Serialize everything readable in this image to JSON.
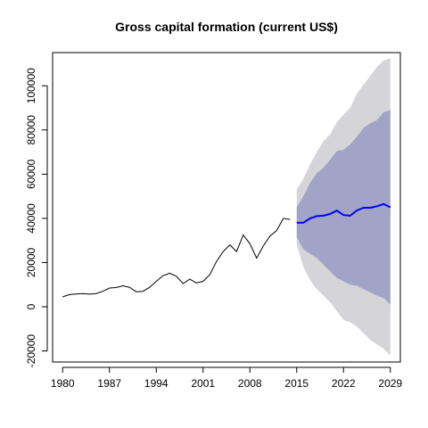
{
  "chart_data": {
    "type": "line",
    "title": "Gross capital formation (current US$)",
    "xlabel": "",
    "ylabel": "",
    "xlim": [
      1978.5,
      2030.5
    ],
    "ylim": [
      -25000,
      115000
    ],
    "x_ticks": [
      1980,
      1987,
      1994,
      2001,
      2008,
      2015,
      2022,
      2029
    ],
    "y_ticks": [
      -20000,
      0,
      20000,
      40000,
      60000,
      80000,
      100000
    ],
    "grid": false,
    "legend": "none",
    "historical": {
      "color": "#000000",
      "x": [
        1980,
        1981,
        1982,
        1983,
        1984,
        1985,
        1986,
        1987,
        1988,
        1989,
        1990,
        1991,
        1992,
        1993,
        1994,
        1995,
        1996,
        1997,
        1998,
        1999,
        2000,
        2001,
        2002,
        2003,
        2004,
        2005,
        2006,
        2007,
        2008,
        2009,
        2010,
        2011,
        2012,
        2013,
        2014
      ],
      "y": [
        4500,
        5500,
        5800,
        6000,
        5700,
        6000,
        7000,
        8500,
        8700,
        9500,
        8800,
        6800,
        7000,
        8800,
        11500,
        14000,
        15200,
        13800,
        10500,
        12500,
        10800,
        11500,
        14500,
        20500,
        25000,
        28000,
        25000,
        32500,
        28500,
        22000,
        27500,
        32000,
        34500,
        40000,
        39500
      ]
    },
    "forecast": {
      "color": "#0000ff",
      "x": [
        2015,
        2016,
        2017,
        2018,
        2019,
        2020,
        2021,
        2022,
        2023,
        2024,
        2025,
        2026,
        2027,
        2028,
        2029
      ],
      "y": [
        38000,
        38000,
        40000,
        41000,
        41200,
        42000,
        43500,
        41500,
        41200,
        43600,
        44800,
        44800,
        45500,
        46500,
        45000
      ]
    },
    "bands": [
      {
        "level": 95,
        "color": "#d4d4d9",
        "lower": [
          28000,
          18000,
          12000,
          8000,
          5000,
          2000,
          -2000,
          -6000,
          -7000,
          -9000,
          -12000,
          -15000,
          -17000,
          -19000,
          -22000
        ],
        "upper": [
          53000,
          58000,
          64500,
          70000,
          75000,
          78000,
          83500,
          87000,
          90000,
          96500,
          100500,
          104500,
          108500,
          111500,
          112500
        ]
      },
      {
        "level": 80,
        "color": "#a1a4c7",
        "lower": [
          31500,
          26000,
          24000,
          22000,
          19000,
          16000,
          13000,
          11500,
          10000,
          9500,
          8000,
          6500,
          5000,
          4000,
          1000
        ],
        "upper": [
          45000,
          50000,
          56000,
          60500,
          63000,
          66500,
          70500,
          71000,
          73500,
          77000,
          81000,
          83000,
          84500,
          88000,
          89000
        ]
      }
    ]
  }
}
